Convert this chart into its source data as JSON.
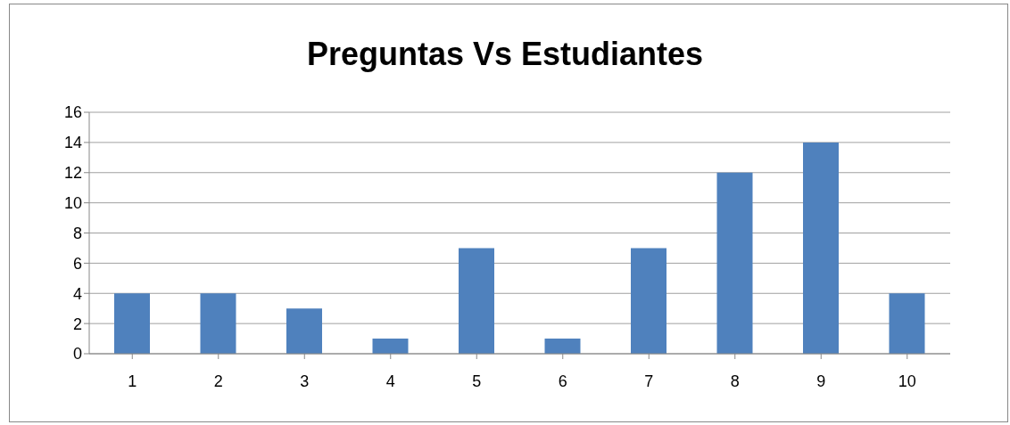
{
  "chart_data": {
    "type": "bar",
    "title": "Preguntas Vs Estudiantes",
    "categories": [
      "1",
      "2",
      "3",
      "4",
      "5",
      "6",
      "7",
      "8",
      "9",
      "10"
    ],
    "values": [
      4,
      4,
      3,
      1,
      7,
      1,
      7,
      12,
      14,
      4
    ],
    "color": "#4f81bd",
    "ylim": [
      0,
      16
    ],
    "yticks": [
      0,
      2,
      4,
      6,
      8,
      10,
      12,
      14,
      16
    ],
    "grid": "y"
  }
}
